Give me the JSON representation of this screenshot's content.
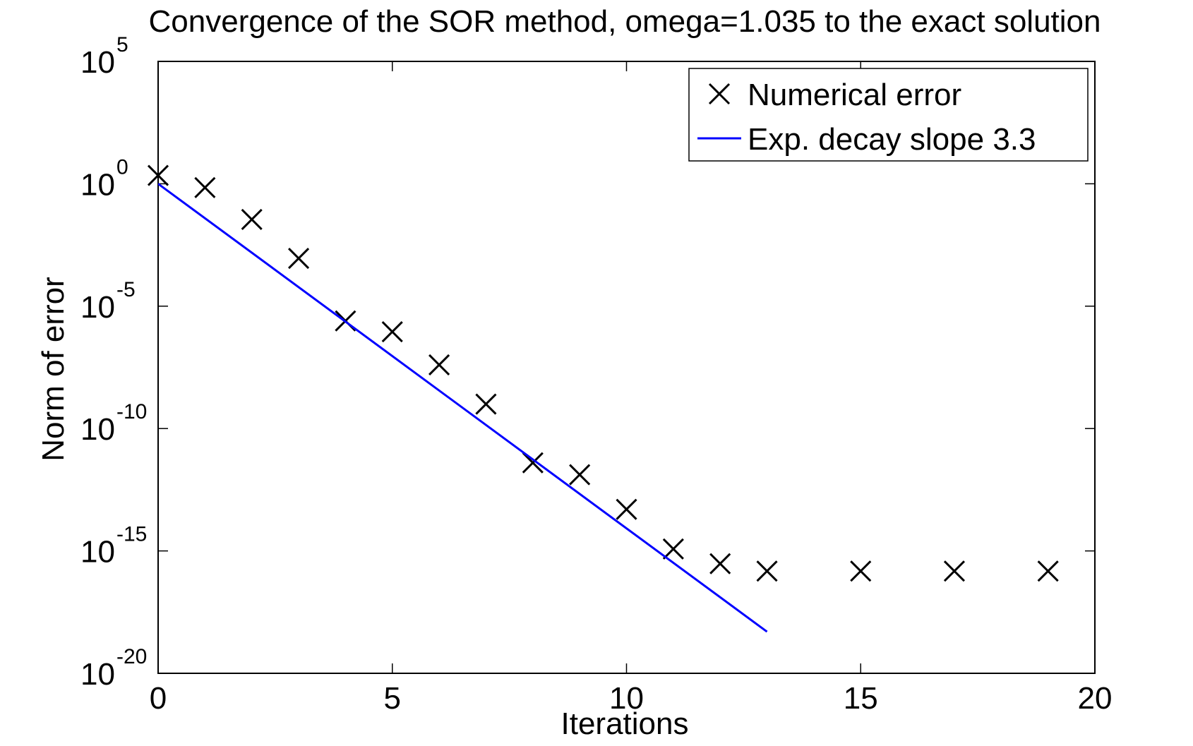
{
  "chart_data": {
    "type": "scatter",
    "title": "Convergence of the SOR method, omega=1.035 to the exact solution",
    "xlabel": "Iterations",
    "ylabel": "Norm of error",
    "xlim": [
      0,
      20
    ],
    "ylim": [
      1e-20,
      100000
    ],
    "yscale": "log",
    "grid": false,
    "legend_position": "top-right",
    "x_ticks": [
      {
        "value": 0,
        "label": "0"
      },
      {
        "value": 5,
        "label": "5"
      },
      {
        "value": 10,
        "label": "10"
      },
      {
        "value": 15,
        "label": "15"
      },
      {
        "value": 20,
        "label": "20"
      }
    ],
    "y_ticks": [
      {
        "value": 100000,
        "base": "10",
        "exp": "5"
      },
      {
        "value": 1,
        "base": "10",
        "exp": "0"
      },
      {
        "value": 1e-05,
        "base": "10",
        "exp": "-5"
      },
      {
        "value": 1e-10,
        "base": "10",
        "exp": "-10"
      },
      {
        "value": 1e-15,
        "base": "10",
        "exp": "-15"
      },
      {
        "value": 1e-20,
        "base": "10",
        "exp": "-20"
      }
    ],
    "series": [
      {
        "name": "Numerical error",
        "kind": "markers",
        "marker": "x",
        "color": "#000000",
        "x": [
          0,
          1,
          2,
          3,
          4,
          5,
          6,
          7,
          8,
          9,
          10,
          11,
          12,
          13,
          15,
          17,
          19
        ],
        "y": [
          2.2,
          0.7,
          0.035,
          0.0009,
          2.5e-06,
          9e-07,
          4e-08,
          1e-09,
          4e-12,
          1.3e-12,
          5e-14,
          1.2e-15,
          3e-16,
          1.5e-16,
          1.5e-16,
          1.5e-16,
          1.5e-16
        ]
      },
      {
        "name": "Exp. decay slope 3.3",
        "kind": "line",
        "color": "#0000ff",
        "x": [
          0,
          13
        ],
        "y": [
          1,
          5e-19
        ]
      }
    ]
  }
}
